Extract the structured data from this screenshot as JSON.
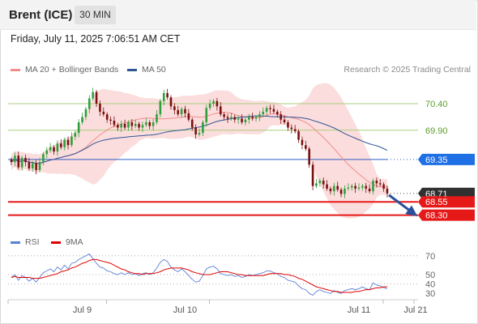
{
  "header": {
    "instrument": "Brent (ICE)",
    "timeframe": "30 MIN"
  },
  "datetime": "Friday, July 11, 2025 7:06:51 AM CET",
  "legend": {
    "price": [
      {
        "label": "MA 20 + Bollinger Bands",
        "color": "#f28b8b"
      },
      {
        "label": "MA 50",
        "color": "#2f5597"
      }
    ],
    "indicator": [
      {
        "label": "RSI",
        "color": "#5b7fd6"
      },
      {
        "label": "9MA",
        "color": "#e00000"
      }
    ]
  },
  "credit": "Research © 2025 Trading Central",
  "chart_data": [
    {
      "type": "candlestick",
      "panel": "price",
      "ylim": [
        68.05,
        70.95
      ],
      "x_ticks": [
        "Jul 9",
        "Jul 10",
        "Jul 11",
        "Jul 21"
      ],
      "price_levels": [
        {
          "value": 70.4,
          "label": "70.40",
          "style": "green-line"
        },
        {
          "value": 69.9,
          "label": "69.90",
          "style": "green-line"
        },
        {
          "value": 69.35,
          "label": "69.35",
          "style": "blue-tag"
        },
        {
          "value": 68.71,
          "label": "68.71",
          "style": "last-price"
        },
        {
          "value": 68.55,
          "label": "68.55",
          "style": "red-tag"
        },
        {
          "value": 68.3,
          "label": "68.30",
          "style": "red-tag"
        }
      ],
      "close": [
        69.3,
        69.42,
        69.2,
        69.38,
        69.3,
        69.18,
        69.28,
        69.15,
        69.3,
        69.45,
        69.52,
        69.58,
        69.5,
        69.65,
        69.58,
        69.72,
        69.62,
        69.78,
        69.85,
        70.05,
        70.15,
        70.3,
        70.5,
        70.62,
        70.4,
        70.25,
        70.2,
        70.1,
        70.08,
        70.0,
        69.95,
        70.02,
        69.95,
        70.05,
        69.98,
        70.02,
        69.95,
        70.0,
        70.05,
        69.98,
        70.05,
        70.2,
        70.45,
        70.6,
        70.52,
        70.35,
        70.28,
        70.2,
        70.3,
        70.22,
        70.1,
        69.95,
        69.82,
        69.85,
        70.05,
        70.32,
        70.4,
        70.45,
        70.35,
        70.2,
        70.15,
        70.12,
        70.15,
        70.1,
        70.12,
        70.05,
        70.1,
        70.15,
        70.12,
        70.15,
        70.2,
        70.25,
        70.32,
        70.3,
        70.25,
        70.2,
        70.1,
        70.05,
        69.95,
        69.92,
        69.88,
        69.72,
        69.62,
        69.55,
        69.25,
        68.85,
        68.9,
        68.95,
        68.88,
        68.8,
        68.75,
        68.85,
        68.78,
        68.7,
        68.8,
        68.82,
        68.85,
        68.8,
        68.82,
        68.85,
        68.8,
        68.75,
        68.95,
        68.9,
        68.88,
        68.8,
        68.71
      ]
    },
    {
      "type": "line",
      "panel": "indicator",
      "ylim": [
        25,
        75
      ],
      "y_ticks": [
        70,
        50,
        40,
        30
      ],
      "series": [
        {
          "name": "RSI",
          "values": [
            47,
            50,
            44,
            49,
            47,
            43,
            46,
            42,
            47,
            52,
            54,
            56,
            53,
            58,
            55,
            60,
            56,
            62,
            63,
            66,
            68,
            70,
            72,
            67,
            62,
            58,
            57,
            54,
            53,
            51,
            50,
            52,
            50,
            52,
            50,
            51,
            49,
            51,
            52,
            50,
            52,
            57,
            63,
            66,
            64,
            58,
            55,
            53,
            56,
            53,
            49,
            45,
            42,
            43,
            49,
            56,
            58,
            59,
            56,
            51,
            50,
            49,
            50,
            48,
            49,
            47,
            48,
            50,
            49,
            50,
            51,
            52,
            54,
            54,
            52,
            51,
            48,
            47,
            44,
            43,
            42,
            38,
            35,
            34,
            30,
            28,
            32,
            34,
            32,
            31,
            30,
            33,
            31,
            30,
            33,
            34,
            35,
            34,
            35,
            37,
            35,
            34,
            41,
            39,
            38,
            36,
            35
          ]
        },
        {
          "name": "9MA",
          "values": [
            47,
            48,
            47,
            47,
            47,
            47,
            46,
            46,
            46,
            47,
            48,
            49,
            50,
            51,
            53,
            54,
            55,
            57,
            58,
            60,
            62,
            63,
            65,
            66,
            66,
            65,
            64,
            63,
            62,
            60,
            58,
            56,
            55,
            53,
            52,
            51,
            51,
            50,
            51,
            51,
            51,
            52,
            53,
            55,
            56,
            57,
            57,
            57,
            57,
            56,
            55,
            53,
            52,
            51,
            50,
            50,
            50,
            51,
            52,
            53,
            53,
            53,
            52,
            51,
            50,
            50,
            49,
            49,
            49,
            49,
            49,
            49,
            50,
            51,
            51,
            51,
            51,
            50,
            50,
            49,
            48,
            46,
            45,
            43,
            41,
            39,
            37,
            36,
            35,
            34,
            33,
            32,
            32,
            31,
            31,
            31,
            31,
            32,
            32,
            33,
            34,
            34,
            35,
            36,
            36,
            37,
            37
          ]
        }
      ]
    }
  ]
}
